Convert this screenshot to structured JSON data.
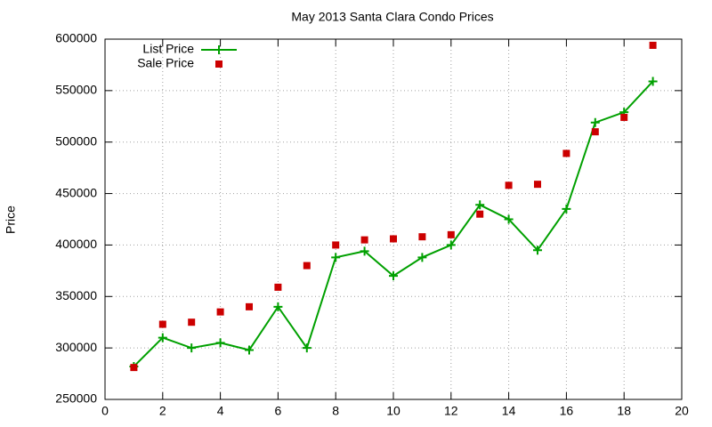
{
  "chart_data": {
    "type": "line",
    "title": "May 2013 Santa Clara Condo Prices",
    "ylabel": "Price",
    "x": [
      1,
      2,
      3,
      4,
      5,
      6,
      7,
      8,
      9,
      10,
      11,
      12,
      13,
      14,
      15,
      16,
      17,
      18,
      19
    ],
    "series": [
      {
        "name": "List Price",
        "color": "#00a000",
        "style": "lines+markers",
        "marker": "plus",
        "values": [
          282000,
          310000,
          300000,
          305000,
          298000,
          340000,
          300000,
          388000,
          394000,
          370000,
          388000,
          400000,
          439000,
          425000,
          395000,
          435000,
          519000,
          529000,
          559000
        ]
      },
      {
        "name": "Sale Price",
        "color": "#cc0000",
        "style": "markers",
        "marker": "square",
        "values": [
          281000,
          323000,
          325000,
          335000,
          340000,
          359000,
          380000,
          400000,
          405000,
          406000,
          408000,
          410000,
          430000,
          458000,
          459000,
          489000,
          510000,
          524000,
          594000
        ]
      }
    ],
    "xlim": [
      0,
      20
    ],
    "xticks": [
      0,
      2,
      4,
      6,
      8,
      10,
      12,
      14,
      16,
      18,
      20
    ],
    "ylim": [
      250000,
      600000
    ],
    "yticks": [
      250000,
      300000,
      350000,
      400000,
      450000,
      500000,
      550000,
      600000
    ],
    "grid": true,
    "legend": "top-left"
  }
}
